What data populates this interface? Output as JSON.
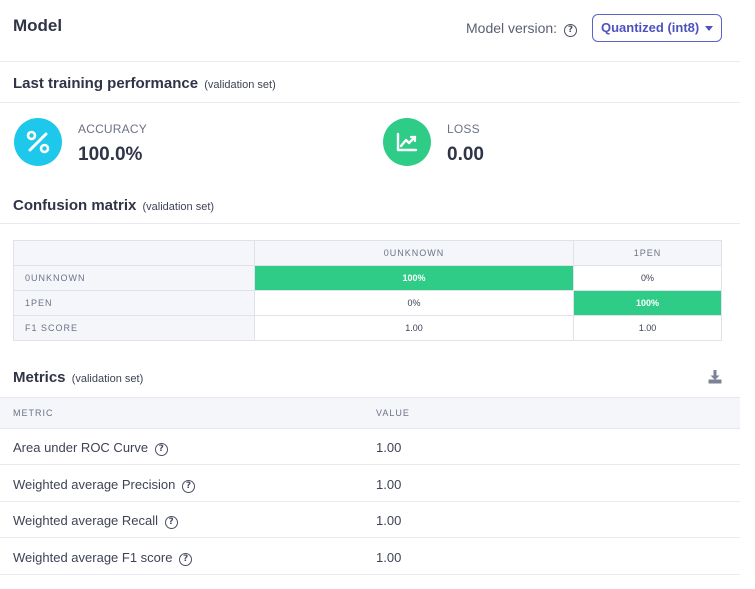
{
  "header": {
    "title": "Model",
    "version_label": "Model version:",
    "help_icon": "question-circle-icon",
    "version_selected": "Quantized (int8)"
  },
  "training": {
    "title": "Last training performance",
    "subtitle": "(validation set)",
    "accuracy": {
      "label": "ACCURACY",
      "value": "100.0%",
      "icon": "percent-icon",
      "color": "#1dc8ea"
    },
    "loss": {
      "label": "LOSS",
      "value": "0.00",
      "icon": "trend-chart-icon",
      "color": "#2ecc87"
    }
  },
  "confusion": {
    "title": "Confusion matrix",
    "subtitle": "(validation set)",
    "columns": [
      "0UNKNOWN",
      "1PEN"
    ],
    "rows": [
      {
        "label": "0UNKNOWN",
        "cells": [
          "100%",
          "0%"
        ]
      },
      {
        "label": "1PEN",
        "cells": [
          "0%",
          "100%"
        ]
      },
      {
        "label": "F1 SCORE",
        "cells": [
          "1.00",
          "1.00"
        ]
      }
    ],
    "highlight_color": "#2ecc87"
  },
  "metrics": {
    "title": "Metrics",
    "subtitle": "(validation set)",
    "col_metric": "METRIC",
    "col_value": "VALUE",
    "rows": [
      {
        "name": "Area under ROC Curve",
        "value": "1.00"
      },
      {
        "name": "Weighted average Precision",
        "value": "1.00"
      },
      {
        "name": "Weighted average Recall",
        "value": "1.00"
      },
      {
        "name": "Weighted average F1 score",
        "value": "1.00"
      }
    ]
  }
}
